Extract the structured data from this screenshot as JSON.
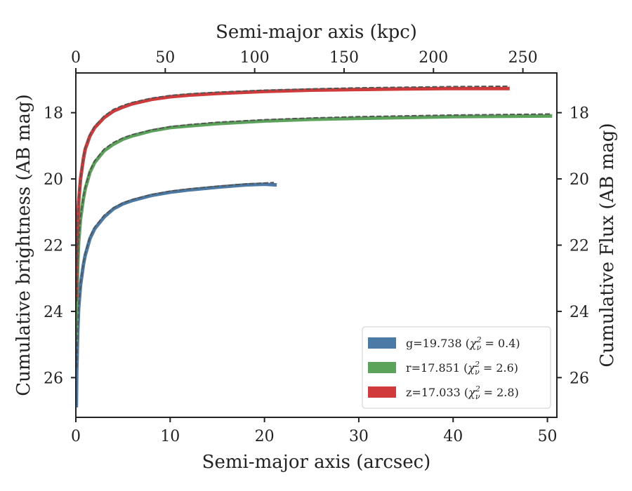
{
  "chart_data": {
    "type": "line",
    "xlabel": "Semi-major axis (arcsec)",
    "ylabel": "Cumulative brightness (AB mag)",
    "x2label": "Semi-major axis (kpc)",
    "y2label": "Cumulative Flux (AB mag)",
    "xlim": [
      0,
      51
    ],
    "ylim": [
      27.2,
      16.8
    ],
    "x2lim": [
      0,
      269
    ],
    "y_inverted": true,
    "grid": false,
    "legend_position": "bottom-right",
    "xticks": [
      0,
      10,
      20,
      30,
      40,
      50
    ],
    "x2ticks": [
      0,
      50,
      100,
      150,
      200,
      250
    ],
    "yticks": [
      18,
      20,
      22,
      24,
      26
    ],
    "legend": [
      {
        "prefix": "g=19.738 (",
        "chi": "χ",
        "sub": "ν",
        "sup": "2",
        "suffix": " = 0.4)",
        "color": "#4a7aa5"
      },
      {
        "prefix": "r=17.851 (",
        "chi": "χ",
        "sub": "ν",
        "sup": "2",
        "suffix": " = 2.6)",
        "color": "#5ba35b"
      },
      {
        "prefix": "z=17.033 (",
        "chi": "χ",
        "sub": "ν",
        "sup": "2",
        "suffix": " = 2.8)",
        "color": "#d03a3a"
      }
    ],
    "series": [
      {
        "name": "g",
        "color": "#4a7aa5",
        "x": [
          0.05,
          0.1,
          0.2,
          0.3,
          0.5,
          0.8,
          1,
          1.5,
          2,
          3,
          4,
          5,
          6,
          8,
          10,
          12,
          15,
          18,
          20,
          21.3
        ],
        "y": [
          26.9,
          25.8,
          24.6,
          23.9,
          23.2,
          22.6,
          22.3,
          21.8,
          21.5,
          21.15,
          20.9,
          20.75,
          20.65,
          20.5,
          20.4,
          20.33,
          20.25,
          20.18,
          20.16,
          20.18
        ]
      },
      {
        "name": "r",
        "color": "#5ba35b",
        "x": [
          0.05,
          0.1,
          0.2,
          0.3,
          0.5,
          0.8,
          1,
          1.5,
          2,
          3,
          4,
          5,
          6,
          8,
          10,
          12,
          15,
          20,
          25,
          30,
          40,
          50.5
        ],
        "y": [
          24.9,
          23.8,
          22.6,
          21.9,
          21.2,
          20.6,
          20.3,
          19.8,
          19.5,
          19.15,
          18.95,
          18.8,
          18.7,
          18.55,
          18.45,
          18.4,
          18.33,
          18.25,
          18.2,
          18.17,
          18.12,
          18.1
        ]
      },
      {
        "name": "z",
        "color": "#d03a3a",
        "x": [
          0.05,
          0.1,
          0.2,
          0.3,
          0.5,
          0.8,
          1,
          1.5,
          2,
          3,
          4,
          5,
          6,
          8,
          10,
          12,
          15,
          20,
          25,
          30,
          35,
          40,
          46
        ],
        "y": [
          23.6,
          22.6,
          21.4,
          20.7,
          20.0,
          19.4,
          19.1,
          18.7,
          18.45,
          18.15,
          17.95,
          17.83,
          17.73,
          17.6,
          17.52,
          17.47,
          17.42,
          17.36,
          17.32,
          17.3,
          17.28,
          17.27,
          17.27
        ]
      }
    ],
    "model_style": {
      "color": "#555555",
      "dash": "dashed"
    },
    "models": [
      {
        "x": [
          0.1,
          0.2,
          0.3,
          0.5,
          0.8,
          1,
          1.5,
          2,
          3,
          4,
          5,
          6,
          8,
          10,
          12,
          15,
          18,
          21
        ],
        "y": [
          25.7,
          24.5,
          23.85,
          23.15,
          22.55,
          22.25,
          21.75,
          21.45,
          21.1,
          20.87,
          20.72,
          20.62,
          20.47,
          20.37,
          20.3,
          20.22,
          20.15,
          20.11
        ]
      },
      {
        "x": [
          0.1,
          0.2,
          0.3,
          0.5,
          0.8,
          1,
          1.5,
          2,
          3,
          4,
          5,
          6,
          8,
          10,
          12,
          15,
          20,
          25,
          30,
          40,
          50.5
        ],
        "y": [
          23.7,
          22.5,
          21.85,
          21.15,
          20.55,
          20.25,
          19.75,
          19.45,
          19.1,
          18.9,
          18.76,
          18.66,
          18.52,
          18.42,
          18.36,
          18.29,
          18.21,
          18.16,
          18.12,
          18.07,
          18.04
        ]
      },
      {
        "x": [
          0.1,
          0.2,
          0.3,
          0.5,
          0.8,
          1,
          1.5,
          2,
          3,
          4,
          5,
          6,
          8,
          10,
          12,
          15,
          20,
          25,
          30,
          35,
          40,
          46
        ],
        "y": [
          22.5,
          21.3,
          20.65,
          19.95,
          19.35,
          19.05,
          18.65,
          18.4,
          18.1,
          17.9,
          17.78,
          17.69,
          17.56,
          17.48,
          17.43,
          17.38,
          17.32,
          17.28,
          17.25,
          17.23,
          17.21,
          17.2
        ]
      }
    ]
  }
}
